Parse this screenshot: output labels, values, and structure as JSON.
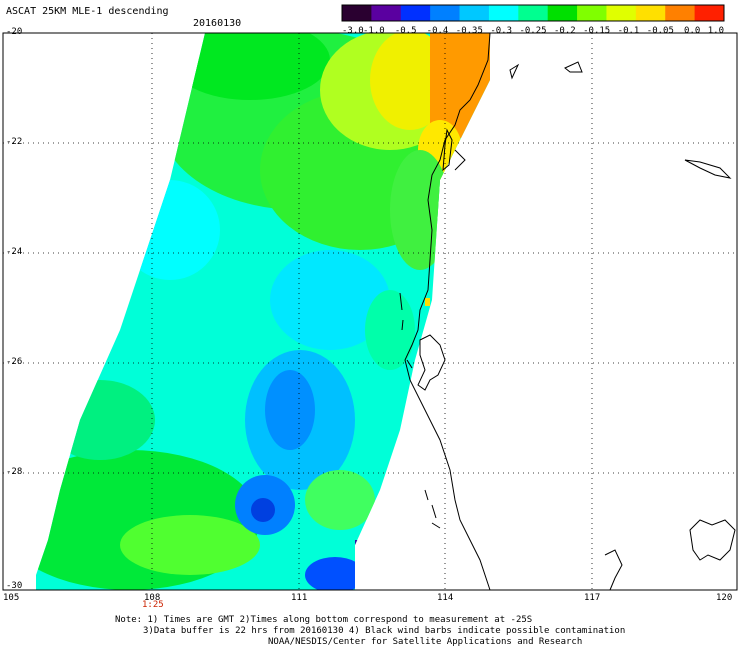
{
  "title": "ASCAT 25KM MLE-1 descending",
  "date": "20160130",
  "colorbar": {
    "labels": [
      "-3.0",
      "-1.0",
      "-0.5",
      "-0.4",
      "-0.35",
      "-0.3",
      "-0.25",
      "-0.2",
      "-0.15",
      "-0.1",
      "-0.05",
      "0.0",
      "1.0"
    ],
    "colors": [
      "#2a0030",
      "#5a00a0",
      "#0030ff",
      "#0080ff",
      "#00c8ff",
      "#00ffff",
      "#00ff90",
      "#00e000",
      "#80ff00",
      "#e0ff00",
      "#ffe000",
      "#ff8000",
      "#ff2000"
    ]
  },
  "lat_labels": [
    "-20",
    "-22",
    "-24",
    "-26",
    "-28",
    "-30"
  ],
  "lon_labels": [
    "105",
    "108",
    "111",
    "114",
    "117",
    "120"
  ],
  "time_label": "1:25",
  "notes": [
    "Note: 1) Times are GMT 2)Times along bottom correspond to measurement at -25S",
    "3)Data buffer is 22 hrs from 20160130 4) Black wind barbs indicate possible contamination",
    "NOAA/NESDIS/Center for Satellite Applications and Research"
  ]
}
